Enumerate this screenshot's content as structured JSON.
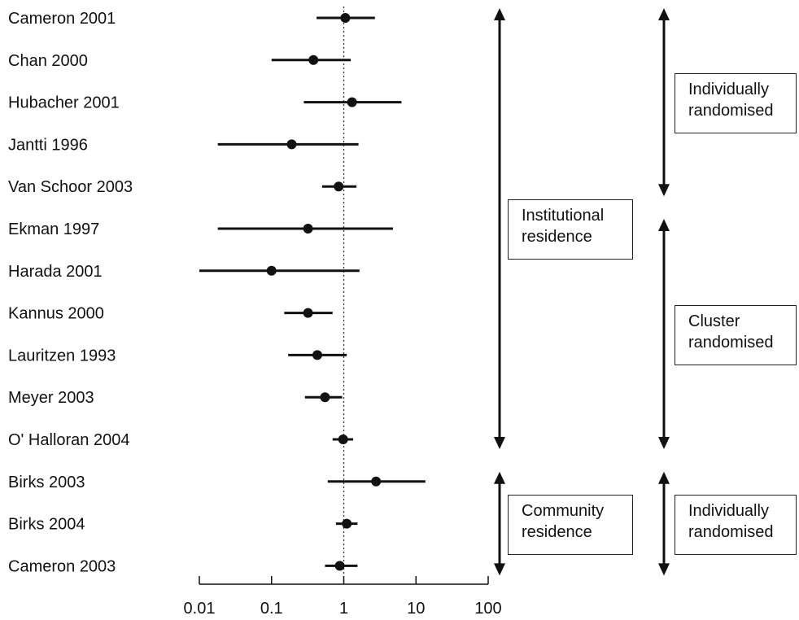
{
  "chart_data": {
    "type": "forest",
    "xscale": "log",
    "xlim": [
      0.01,
      100
    ],
    "xticks": [
      0.01,
      0.1,
      1,
      10,
      100
    ],
    "xtick_labels": [
      "0.01",
      "0.1",
      "1",
      "10",
      "100"
    ],
    "reference_line": 1,
    "studies": [
      {
        "label": "Cameron 2001",
        "estimate": 1.05,
        "lower": 0.42,
        "upper": 2.7
      },
      {
        "label": "Chan 2000",
        "estimate": 0.38,
        "lower": 0.1,
        "upper": 1.25
      },
      {
        "label": "Hubacher 2001",
        "estimate": 1.3,
        "lower": 0.28,
        "upper": 6.3
      },
      {
        "label": "Jantti 1996",
        "estimate": 0.19,
        "lower": 0.018,
        "upper": 1.6
      },
      {
        "label": "Van Schoor 2003",
        "estimate": 0.85,
        "lower": 0.5,
        "upper": 1.5
      },
      {
        "label": "Ekman 1997",
        "estimate": 0.32,
        "lower": 0.018,
        "upper": 4.8
      },
      {
        "label": "Harada 2001",
        "estimate": 0.1,
        "lower": 0.01,
        "upper": 1.65
      },
      {
        "label": "Kannus 2000",
        "estimate": 0.32,
        "lower": 0.15,
        "upper": 0.7
      },
      {
        "label": "Lauritzen 1993",
        "estimate": 0.43,
        "lower": 0.17,
        "upper": 1.1
      },
      {
        "label": "Meyer 2003",
        "estimate": 0.55,
        "lower": 0.29,
        "upper": 0.95
      },
      {
        "label": "O' Halloran 2004",
        "estimate": 0.98,
        "lower": 0.7,
        "upper": 1.35
      },
      {
        "label": "Birks 2003",
        "estimate": 2.8,
        "lower": 0.6,
        "upper": 13.5
      },
      {
        "label": "Birks 2004",
        "estimate": 1.1,
        "lower": 0.78,
        "upper": 1.55
      },
      {
        "label": "Cameron 2003",
        "estimate": 0.88,
        "lower": 0.55,
        "upper": 1.55
      }
    ],
    "groups": {
      "residence": [
        {
          "lines": [
            "Institutional",
            "residence"
          ],
          "from": 0,
          "to": 10
        },
        {
          "lines": [
            "Community",
            "residence"
          ],
          "from": 11,
          "to": 13
        }
      ],
      "design": [
        {
          "lines": [
            "Individually",
            "randomised"
          ],
          "from": 0,
          "to": 4
        },
        {
          "lines": [
            "Cluster",
            "randomised"
          ],
          "from": 5,
          "to": 10
        },
        {
          "lines": [
            "Individually",
            "randomised"
          ],
          "from": 11,
          "to": 13
        }
      ]
    }
  }
}
